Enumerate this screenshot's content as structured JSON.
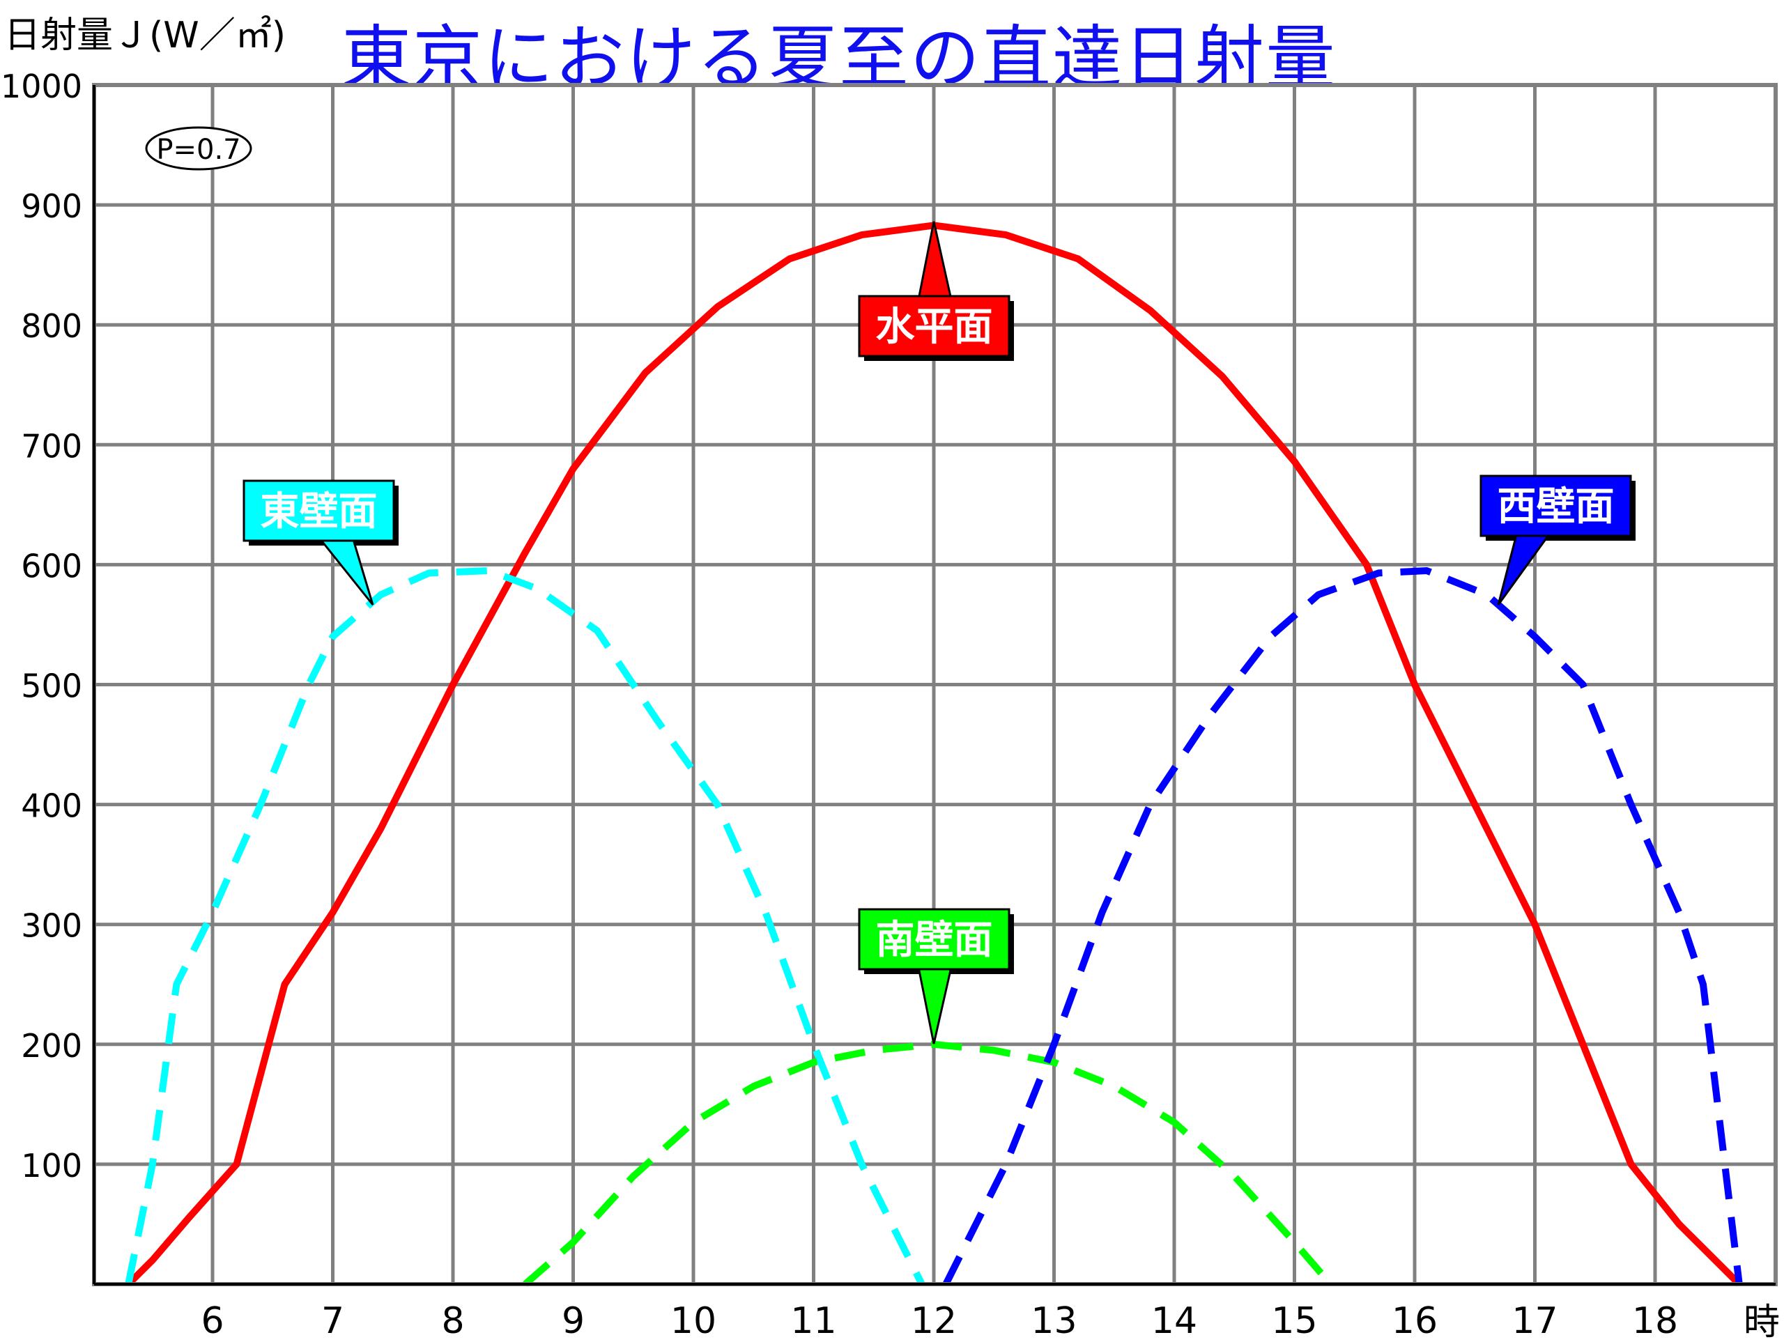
{
  "chart_data": {
    "type": "line",
    "title": "東京における夏至の直達日射量",
    "ylabel": "日射量Ｊ(W／㎡)",
    "xlabel": "時",
    "annotation": "P=0.7",
    "xlim": [
      5.0,
      19.0
    ],
    "ylim": [
      0,
      1000
    ],
    "x_ticks": [
      "6",
      "7",
      "8",
      "9",
      "10",
      "11",
      "12",
      "13",
      "14",
      "15",
      "16",
      "17",
      "18"
    ],
    "y_ticks": [
      "100",
      "200",
      "300",
      "400",
      "500",
      "600",
      "700",
      "800",
      "900",
      "1000"
    ],
    "grid": true,
    "series": [
      {
        "name": "水平面",
        "color": "#ff0000",
        "style": "solid",
        "x": [
          5.3,
          5.5,
          5.8,
          6.2,
          6.6,
          7.0,
          7.4,
          8.0,
          8.6,
          9.0,
          9.6,
          10.2,
          10.8,
          11.4,
          12.0,
          12.6,
          13.2,
          13.8,
          14.4,
          15.0,
          15.6,
          16.0,
          16.6,
          17.0,
          17.4,
          17.8,
          18.2,
          18.5,
          18.7
        ],
        "y": [
          0,
          20,
          55,
          100,
          250,
          310,
          380,
          500,
          610,
          680,
          760,
          815,
          855,
          875,
          883,
          875,
          855,
          812,
          757,
          686,
          600,
          500,
          380,
          300,
          200,
          100,
          50,
          20,
          0
        ]
      },
      {
        "name": "東壁面",
        "color": "#00ffff",
        "style": "dashed",
        "x": [
          5.3,
          5.5,
          5.7,
          6.0,
          6.4,
          6.8,
          7.0,
          7.4,
          7.8,
          8.3,
          8.7,
          9.2,
          9.7,
          10.2,
          10.6,
          11.0,
          11.4,
          11.9
        ],
        "y": [
          0,
          100,
          250,
          310,
          400,
          500,
          540,
          575,
          593,
          595,
          580,
          545,
          470,
          400,
          310,
          200,
          100,
          0
        ]
      },
      {
        "name": "南壁面",
        "color": "#00ff00",
        "style": "dashed",
        "x": [
          8.6,
          9.0,
          9.5,
          10.0,
          10.5,
          11.0,
          11.5,
          12.0,
          12.5,
          13.0,
          13.5,
          14.0,
          14.5,
          15.0,
          15.3
        ],
        "y": [
          0,
          35,
          90,
          135,
          165,
          185,
          195,
          200,
          195,
          185,
          165,
          135,
          90,
          35,
          0
        ]
      },
      {
        "name": "西壁面",
        "color": "#0000ff",
        "style": "dashed",
        "x": [
          12.1,
          12.6,
          13.0,
          13.4,
          13.8,
          14.3,
          14.8,
          15.2,
          15.7,
          16.1,
          16.6,
          17.0,
          17.4,
          17.8,
          18.2,
          18.4,
          18.7
        ],
        "y": [
          0,
          100,
          200,
          310,
          400,
          475,
          540,
          575,
          593,
          595,
          575,
          540,
          500,
          400,
          310,
          250,
          0
        ]
      }
    ],
    "labels": [
      {
        "text": "水平面",
        "bg": "#ff0000",
        "fg": "#ffffff"
      },
      {
        "text": "東壁面",
        "bg": "#00ffff",
        "fg": "#ffffff"
      },
      {
        "text": "南壁面",
        "bg": "#00ff00",
        "fg": "#ffffff"
      },
      {
        "text": "西壁面",
        "bg": "#0000ff",
        "fg": "#ffffff"
      }
    ]
  }
}
